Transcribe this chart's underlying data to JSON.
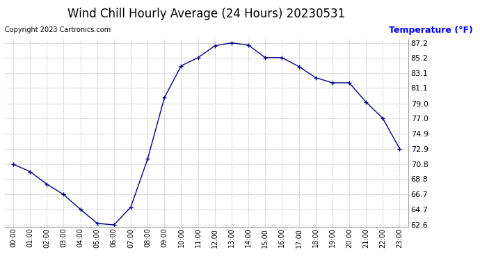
{
  "title": "Wind Chill Hourly Average (24 Hours) 20230531",
  "ylabel": "Temperature (°F)",
  "copyright": "Copyright 2023 Cartronics.com",
  "hours": [
    "00:00",
    "01:00",
    "02:00",
    "03:00",
    "04:00",
    "05:00",
    "06:00",
    "07:00",
    "08:00",
    "09:00",
    "10:00",
    "11:00",
    "12:00",
    "13:00",
    "14:00",
    "15:00",
    "16:00",
    "17:00",
    "18:00",
    "19:00",
    "20:00",
    "21:00",
    "22:00",
    "23:00"
  ],
  "values": [
    70.8,
    69.8,
    68.1,
    66.7,
    64.7,
    62.8,
    62.6,
    65.0,
    71.5,
    79.8,
    84.1,
    85.2,
    86.8,
    87.2,
    86.9,
    85.2,
    85.2,
    84.0,
    82.5,
    81.8,
    81.8,
    79.2,
    77.0,
    72.9
  ],
  "ylim_min": 62.6,
  "ylim_max": 87.2,
  "line_color": "#00008B",
  "marker_color": "#00008B",
  "bg_color": "#ffffff",
  "grid_color": "#bbbbbb",
  "title_fontsize": 12,
  "label_fontsize": 9,
  "tick_fontsize": 8,
  "copyright_fontsize": 7,
  "yticks": [
    62.6,
    64.7,
    66.7,
    68.8,
    70.8,
    72.9,
    74.9,
    77.0,
    79.0,
    81.1,
    83.1,
    85.2,
    87.2
  ]
}
